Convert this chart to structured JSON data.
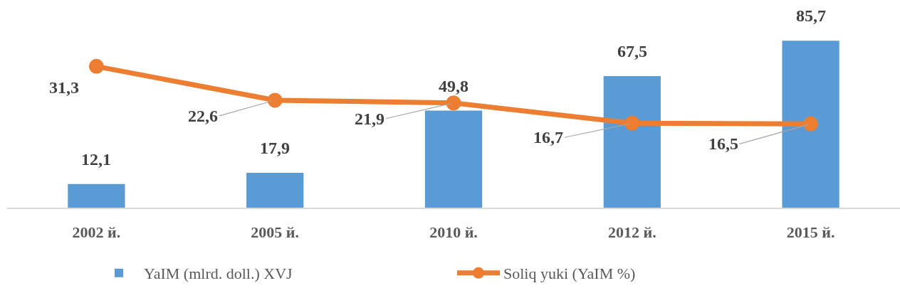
{
  "chart_data": {
    "type": "bar",
    "categories": [
      "2002 й.",
      "2005 й.",
      "2010 й.",
      "2012 й.",
      "2015 й."
    ],
    "series": [
      {
        "name": "YaIM (mlrd. doll.) XVJ",
        "color": "#5b9bd5",
        "values": [
          12.1,
          17.9,
          49.8,
          67.5,
          85.7
        ],
        "value_labels": [
          "12,1",
          "17,9",
          "49,8",
          "67,5",
          "85,7"
        ]
      },
      {
        "name": "Soliq yuki (YaIM %)",
        "type": "line",
        "axis": "y2",
        "color": "#ed7d31",
        "marker": "circle",
        "line_style": "solid",
        "values": [
          31.3,
          22.6,
          21.9,
          16.7,
          16.5
        ],
        "value_labels": [
          "31,3",
          "22,6",
          "21,9",
          "16,7",
          "16,5"
        ]
      }
    ],
    "tick_labels": "x",
    "grid": false,
    "legend": "bottom"
  }
}
